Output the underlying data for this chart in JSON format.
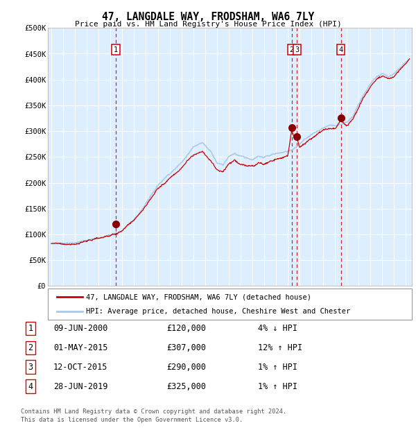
{
  "title": "47, LANGDALE WAY, FRODSHAM, WA6 7LY",
  "subtitle": "Price paid vs. HM Land Registry's House Price Index (HPI)",
  "legend_line1": "47, LANGDALE WAY, FRODSHAM, WA6 7LY (detached house)",
  "legend_line2": "HPI: Average price, detached house, Cheshire West and Chester",
  "footer1": "Contains HM Land Registry data © Crown copyright and database right 2024.",
  "footer2": "This data is licensed under the Open Government Licence v3.0.",
  "hpi_color": "#a8c8e8",
  "price_color": "#cc0000",
  "bg_color": "#ddeeff",
  "grid_color": "#ffffff",
  "sale_marker_color": "#880000",
  "vline_color": "#cc0000",
  "transactions": [
    {
      "num": 1,
      "date_label": "09-JUN-2000",
      "price": 120000,
      "pct": "4%",
      "dir": "↓",
      "x_year": 2000.44
    },
    {
      "num": 2,
      "date_label": "01-MAY-2015",
      "price": 307000,
      "pct": "12%",
      "dir": "↑",
      "x_year": 2015.33
    },
    {
      "num": 3,
      "date_label": "12-OCT-2015",
      "price": 290000,
      "pct": "1%",
      "dir": "↑",
      "x_year": 2015.79
    },
    {
      "num": 4,
      "date_label": "28-JUN-2019",
      "price": 325000,
      "pct": "1%",
      "dir": "↑",
      "x_year": 2019.49
    }
  ],
  "ylim": [
    0,
    500000
  ],
  "xlim_start": 1994.7,
  "xlim_end": 2025.5
}
